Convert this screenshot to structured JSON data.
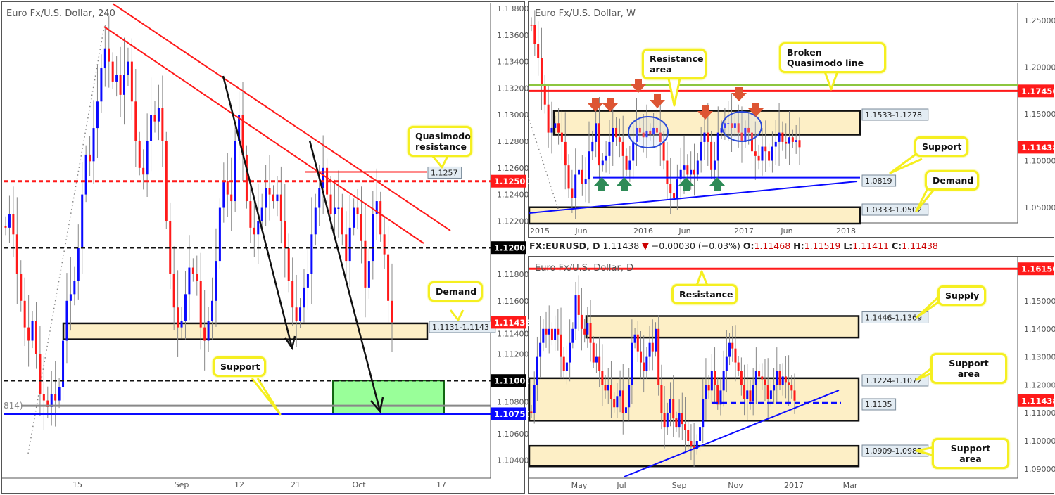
{
  "left": {
    "title": "Euro Fx/U.S. Dollar, 240",
    "price_ticks": [
      "1.13800",
      "1.13600",
      "1.13400",
      "1.13200",
      "1.13000",
      "1.12800",
      "1.12600",
      "1.12400",
      "1.12200",
      "1.12000",
      "1.11800",
      "1.11600",
      "1.11400",
      "1.11200",
      "1.11000",
      "1.10800",
      "1.10600",
      "1.10400"
    ],
    "time_ticks": [
      "15",
      "Sep",
      "12",
      "21",
      "Oct",
      "17"
    ],
    "axis_labels": [
      {
        "text": "1.12500",
        "price": 1.125,
        "color": "#ff1a1a"
      },
      {
        "text": "1.12000",
        "price": 1.12,
        "color": "#000000"
      },
      {
        "text": "1.11438",
        "price": 1.11438,
        "color": "#ff1a1a"
      },
      {
        "text": "1.11000",
        "price": 1.11,
        "color": "#000000"
      },
      {
        "text": "1.10750",
        "price": 1.1075,
        "color": "#0a0aff"
      }
    ],
    "partial_label": "814)",
    "quasimodo_label": "1.1257",
    "demand_label": "1.1131-1.1143",
    "bubbles": {
      "quasimodo": "Quasimodo resistance",
      "demand": "Demand",
      "support": "Support"
    }
  },
  "weekly": {
    "title": "Euro Fx/U.S. Dollar, W",
    "price_ticks": [
      "1.25000",
      "1.20000",
      "1.15000",
      "1.10000",
      "1.05000"
    ],
    "time_ticks": [
      "2015",
      "Jun",
      "2016",
      "Jun",
      "2017",
      "Jun",
      "2018"
    ],
    "axis_labels": [
      {
        "text": "1.17456",
        "price": 1.17456,
        "color": "#ff1a1a"
      },
      {
        "text": "1.11438",
        "price": 1.11438,
        "color": "#ff1a1a"
      }
    ],
    "zone_labels": {
      "resistance": "1.1533-1.1278",
      "support": "1.0819",
      "demand": "1.0333-1.0502"
    },
    "bubbles": {
      "resistance": "Resistance area",
      "broken_qm": "Broken Quasimodo line",
      "support": "Support",
      "demand": "Demand"
    }
  },
  "daily_header": {
    "symbol": "FX:EURUSD, D",
    "price": "1.11438",
    "change": "−0.00030 (−0.03%)",
    "o_label": "O:",
    "o": "1.11468",
    "h_label": "H:",
    "h": "1.11519",
    "l_label": "L:",
    "l": "1.11411",
    "c_label": "C:",
    "c": "1.11438"
  },
  "daily": {
    "title": "Euro Fx/U.S. Dollar, D",
    "price_ticks": [
      "1.15000",
      "1.14000",
      "1.13000",
      "1.12000",
      "1.11000",
      "1.10000",
      "1.09000"
    ],
    "time_ticks": [
      "May",
      "Jul",
      "Sep",
      "Nov",
      "2017",
      "Mar"
    ],
    "axis_labels": [
      {
        "text": "1.16150",
        "price": 1.1615,
        "color": "#ff1a1a"
      },
      {
        "text": "1.11438",
        "price": 1.11438,
        "color": "#ff1a1a"
      }
    ],
    "zone_labels": {
      "supply": "1.1446-1.1369",
      "support_area_1": "1.1224-1.1072",
      "level": "1.1135",
      "support_area_2": "1.0909-1.0982"
    },
    "bubbles": {
      "resistance": "Resistance",
      "supply": "Supply",
      "support_area_1": "Support area",
      "support_area_2": "Support area"
    }
  },
  "colors": {
    "up": "#0a0aff",
    "down": "#ff1a1a",
    "zone": "#fdefc6",
    "green_zone": "#99ff99",
    "bubble_border": "#f5ef20",
    "green_line": "#8dc63f"
  },
  "chart_data": [
    {
      "type": "candlestick",
      "title": "Euro Fx/U.S. Dollar, 240",
      "ylim": [
        1.103,
        1.1385
      ],
      "x_ticks": [
        "15",
        "Sep",
        "12",
        "21",
        "Oct",
        "17"
      ],
      "closes": [
        1.1215,
        1.1225,
        1.121,
        1.118,
        1.116,
        1.114,
        1.113,
        1.1145,
        1.112,
        1.109,
        1.1085,
        1.108,
        1.109,
        1.1085,
        1.1095,
        1.113,
        1.116,
        1.1165,
        1.1175,
        1.12,
        1.124,
        1.127,
        1.1265,
        1.129,
        1.131,
        1.1335,
        1.135,
        1.134,
        1.1325,
        1.133,
        1.1315,
        1.133,
        1.134,
        1.131,
        1.128,
        1.126,
        1.1255,
        1.128,
        1.13,
        1.1295,
        1.1305,
        1.128,
        1.122,
        1.118,
        1.1155,
        1.114,
        1.1145,
        1.1165,
        1.1185,
        1.118,
        1.1175,
        1.114,
        1.113,
        1.1145,
        1.116,
        1.119,
        1.123,
        1.125,
        1.124,
        1.1235,
        1.128,
        1.13,
        1.127,
        1.1235,
        1.1215,
        1.121,
        1.122,
        1.123,
        1.1245,
        1.124,
        1.1235,
        1.124,
        1.122,
        1.12,
        1.1175,
        1.1155,
        1.1145,
        1.1155,
        1.117,
        1.118,
        1.121,
        1.123,
        1.1245,
        1.126,
        1.124,
        1.1225,
        1.123,
        1.123,
        1.121,
        1.119,
        1.1215,
        1.123,
        1.1225,
        1.1205,
        1.117,
        1.119,
        1.1225,
        1.1235,
        1.121,
        1.1195,
        1.116,
        1.11438
      ],
      "levels": [
        1.125,
        1.12,
        1.11,
        1.1081,
        1.1075,
        1.1257
      ],
      "zones": [
        {
          "label": "Demand",
          "low": 1.1131,
          "high": 1.1143
        },
        {
          "label": "target",
          "low": 1.1075,
          "high": 1.11
        }
      ]
    },
    {
      "type": "candlestick",
      "title": "Euro Fx/U.S. Dollar, W",
      "ylim": [
        1.03,
        1.265
      ],
      "x_ticks": [
        "2015",
        "Jun",
        "2016",
        "Jun",
        "2017",
        "Jun",
        "2018"
      ],
      "closes": [
        1.245,
        1.225,
        1.21,
        1.18,
        1.16,
        1.13,
        1.135,
        1.14,
        1.13,
        1.12,
        1.095,
        1.07,
        1.06,
        1.085,
        1.09,
        1.075,
        1.08,
        1.11,
        1.12,
        1.14,
        1.095,
        1.1,
        1.105,
        1.12,
        1.135,
        1.125,
        1.12,
        1.105,
        1.09,
        1.1,
        1.12,
        1.135,
        1.13,
        1.125,
        1.132,
        1.128,
        1.135,
        1.13,
        1.12,
        1.1,
        1.075,
        1.065,
        1.06,
        1.08,
        1.09,
        1.095,
        1.085,
        1.09,
        1.085,
        1.1,
        1.12,
        1.13,
        1.12,
        1.09,
        1.1,
        1.13,
        1.135,
        1.14,
        1.14,
        1.135,
        1.14,
        1.13,
        1.12,
        1.135,
        1.13,
        1.11,
        1.105,
        1.1,
        1.115,
        1.11,
        1.1,
        1.115,
        1.12,
        1.13,
        1.12,
        1.118,
        1.125,
        1.12,
        1.122,
        1.11438
      ],
      "levels": [
        1.1812,
        1.17456,
        1.0819
      ],
      "zones": [
        {
          "label": "Resistance area",
          "low": 1.1278,
          "high": 1.1533
        },
        {
          "label": "Demand",
          "low": 1.0333,
          "high": 1.0502
        }
      ]
    },
    {
      "type": "candlestick",
      "title": "Euro Fx/U.S. Dollar, D",
      "ylim": [
        1.086,
        1.166
      ],
      "x_ticks": [
        "May",
        "Jul",
        "Sep",
        "Nov",
        "2017",
        "Mar"
      ],
      "closes": [
        1.11,
        1.12,
        1.13,
        1.135,
        1.14,
        1.138,
        1.14,
        1.136,
        1.14,
        1.138,
        1.13,
        1.125,
        1.128,
        1.135,
        1.14,
        1.152,
        1.145,
        1.14,
        1.138,
        1.142,
        1.135,
        1.128,
        1.13,
        1.125,
        1.12,
        1.118,
        1.12,
        1.115,
        1.112,
        1.116,
        1.118,
        1.11,
        1.112,
        1.12,
        1.135,
        1.138,
        1.132,
        1.128,
        1.125,
        1.13,
        1.135,
        1.132,
        1.14,
        1.12,
        1.11,
        1.105,
        1.11,
        1.115,
        1.108,
        1.105,
        1.11,
        1.106,
        1.104,
        1.1,
        1.098,
        1.097,
        1.1,
        1.105,
        1.115,
        1.12,
        1.118,
        1.125,
        1.12,
        1.113,
        1.118,
        1.125,
        1.13,
        1.135,
        1.133,
        1.128,
        1.125,
        1.12,
        1.115,
        1.118,
        1.114,
        1.12,
        1.125,
        1.123,
        1.122,
        1.12,
        1.115,
        1.118,
        1.12,
        1.125,
        1.12,
        1.123,
        1.121,
        1.12,
        1.118,
        1.11438
      ],
      "levels": [
        1.1615,
        1.1135
      ],
      "zones": [
        {
          "label": "Supply",
          "low": 1.1369,
          "high": 1.1446
        },
        {
          "label": "Support area",
          "low": 1.1072,
          "high": 1.1224
        },
        {
          "label": "Support area",
          "low": 1.0909,
          "high": 1.0982
        }
      ]
    }
  ]
}
